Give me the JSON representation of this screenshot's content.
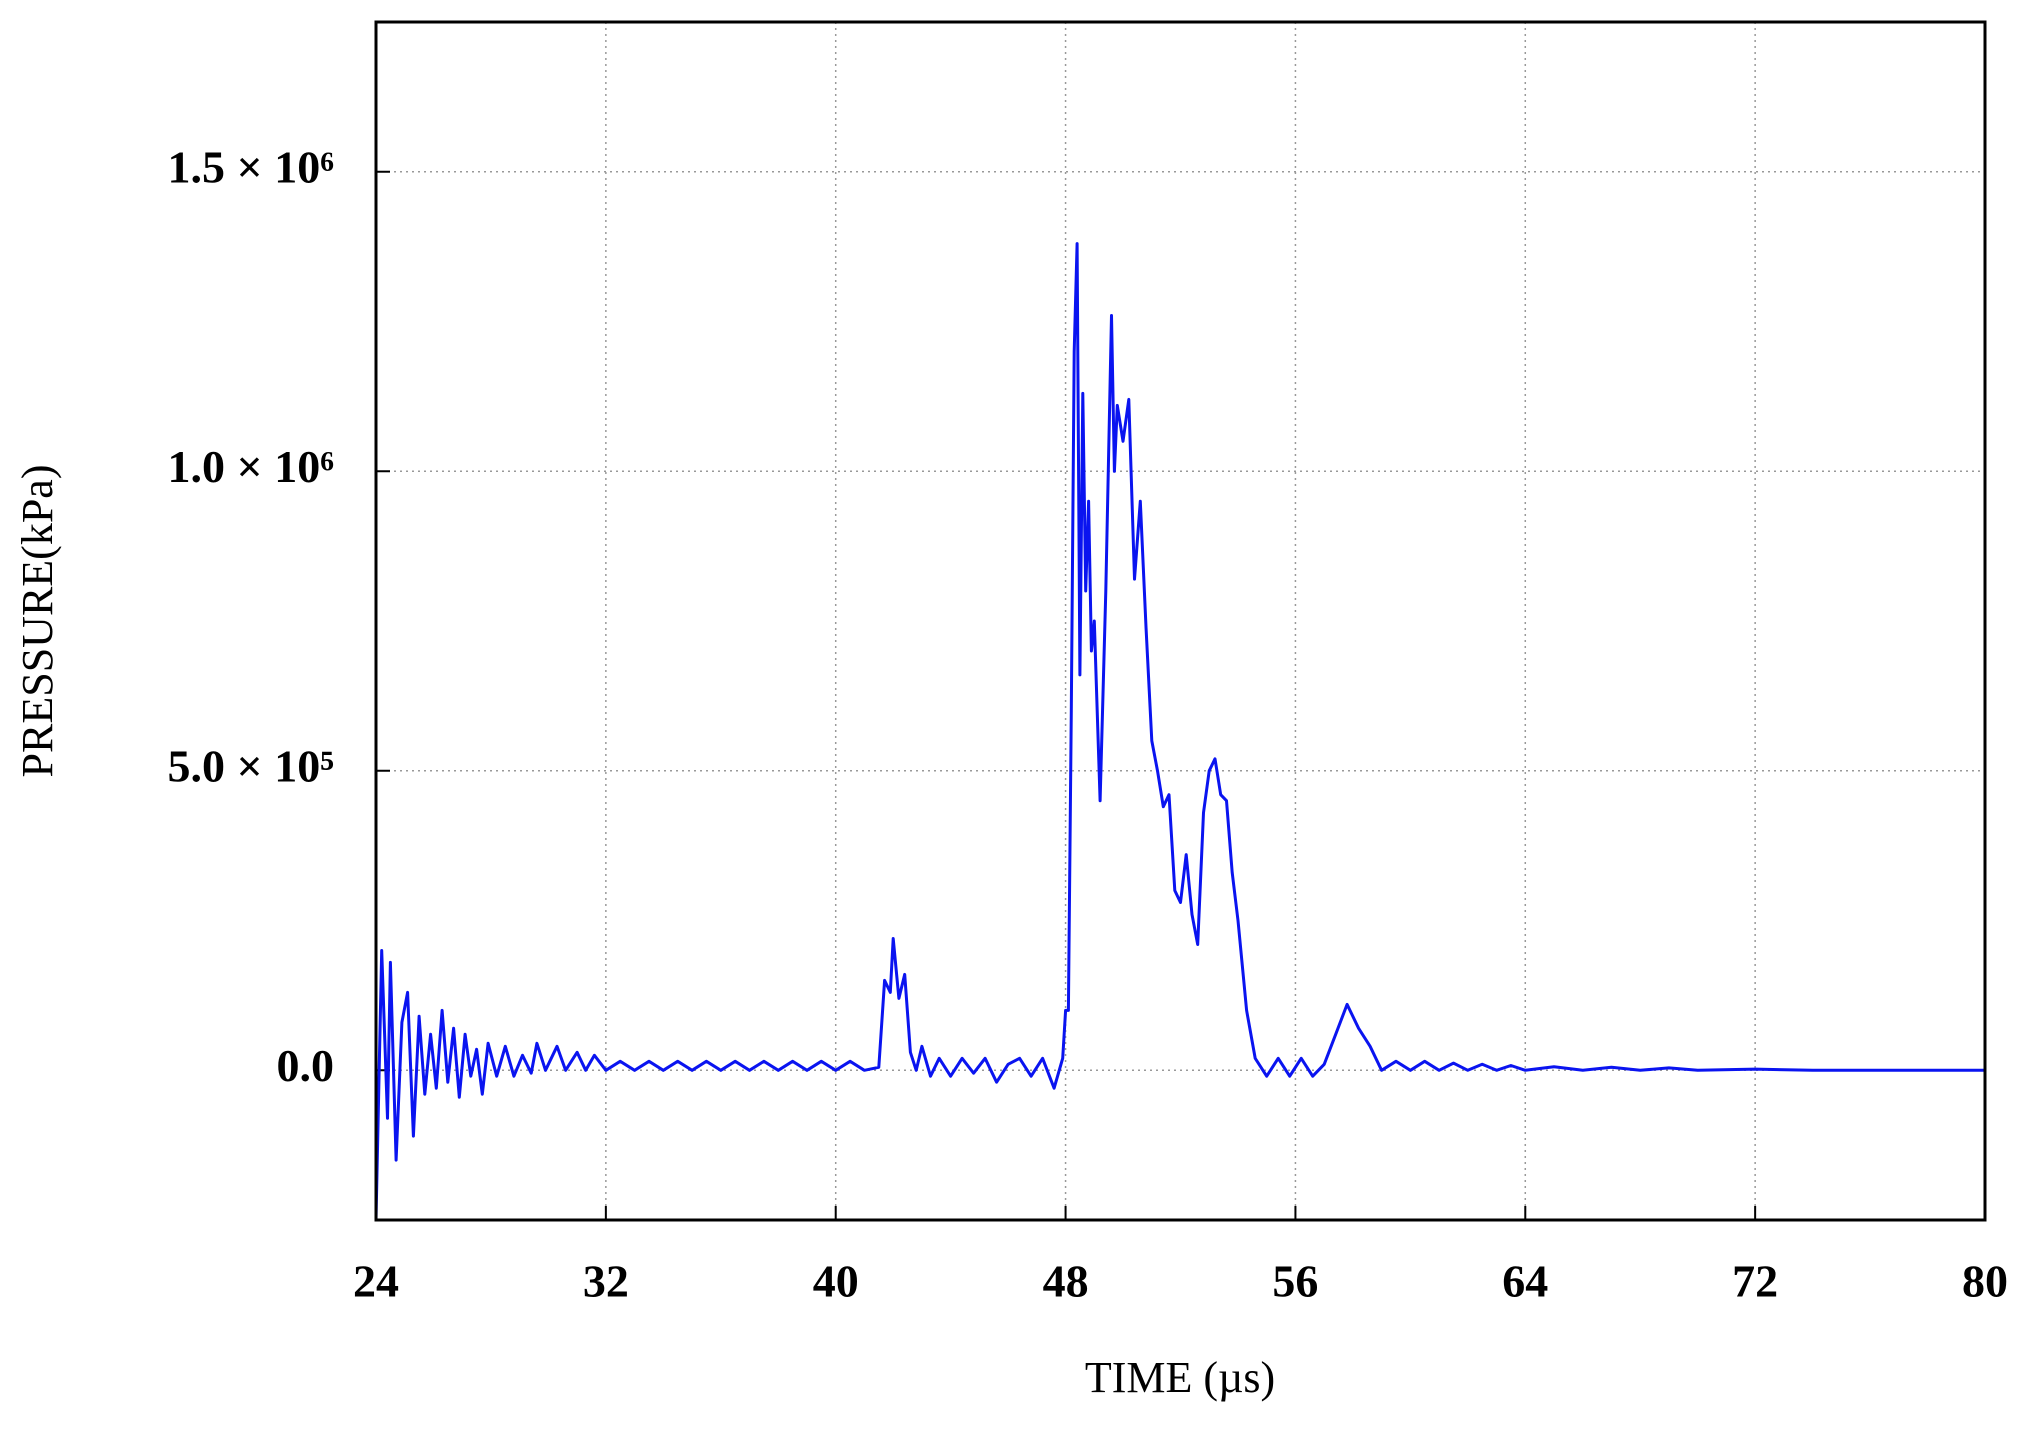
{
  "chart_data": {
    "type": "line",
    "xlabel": "TIME (µs)",
    "ylabel": "PRESSURE(kPa)",
    "x": [
      24.0,
      24.2,
      24.4,
      24.5,
      24.7,
      24.9,
      25.1,
      25.3,
      25.5,
      25.7,
      25.9,
      26.1,
      26.3,
      26.5,
      26.7,
      26.9,
      27.1,
      27.3,
      27.5,
      27.7,
      27.9,
      28.2,
      28.5,
      28.8,
      29.1,
      29.4,
      29.6,
      29.9,
      30.3,
      30.6,
      31.0,
      31.3,
      31.6,
      32.0,
      32.5,
      33.0,
      33.5,
      34.0,
      34.5,
      35.0,
      35.5,
      36.0,
      36.5,
      37.0,
      37.5,
      38.0,
      38.5,
      39.0,
      39.5,
      40.0,
      40.5,
      41.0,
      41.5,
      41.7,
      41.9,
      42.0,
      42.2,
      42.4,
      42.6,
      42.8,
      43.0,
      43.3,
      43.6,
      44.0,
      44.4,
      44.8,
      45.2,
      45.6,
      46.0,
      46.4,
      46.8,
      47.2,
      47.6,
      47.9,
      48.0,
      48.1,
      48.2,
      48.3,
      48.4,
      48.5,
      48.6,
      48.7,
      48.8,
      48.9,
      49.0,
      49.2,
      49.4,
      49.6,
      49.7,
      49.8,
      50.0,
      50.2,
      50.4,
      50.6,
      50.8,
      51.0,
      51.2,
      51.4,
      51.6,
      51.8,
      52.0,
      52.2,
      52.4,
      52.6,
      52.8,
      53.0,
      53.2,
      53.4,
      53.6,
      53.8,
      54.0,
      54.3,
      54.6,
      55.0,
      55.4,
      55.8,
      56.2,
      56.6,
      57.0,
      57.4,
      57.8,
      58.2,
      58.6,
      59.0,
      59.5,
      60.0,
      60.5,
      61.0,
      61.5,
      62.0,
      62.5,
      63.0,
      63.5,
      64.0,
      65.0,
      66.0,
      67.0,
      68.0,
      69.0,
      70.0,
      72.0,
      74.0,
      76.0,
      78.0,
      80.0
    ],
    "series": [
      {
        "color": "#0a14f0",
        "values": [
          -250000,
          200000,
          -80000,
          180000,
          -150000,
          80000,
          130000,
          -110000,
          90000,
          -40000,
          60000,
          -30000,
          100000,
          -20000,
          70000,
          -45000,
          60000,
          -10000,
          35000,
          -40000,
          45000,
          -10000,
          40000,
          -10000,
          25000,
          -5000,
          45000,
          0,
          40000,
          0,
          30000,
          0,
          25000,
          0,
          15000,
          0,
          15000,
          0,
          15000,
          0,
          15000,
          0,
          15000,
          0,
          15000,
          0,
          15000,
          0,
          15000,
          0,
          15000,
          0,
          5000,
          150000,
          130000,
          220000,
          120000,
          160000,
          30000,
          0,
          40000,
          -10000,
          20000,
          -10000,
          20000,
          -5000,
          20000,
          -20000,
          10000,
          20000,
          -10000,
          20000,
          -30000,
          20000,
          100000,
          100000,
          600000,
          1200000,
          1380000,
          660000,
          1130000,
          800000,
          950000,
          700000,
          750000,
          450000,
          800000,
          1260000,
          1000000,
          1110000,
          1050000,
          1120000,
          820000,
          950000,
          740000,
          550000,
          500000,
          440000,
          460000,
          300000,
          280000,
          360000,
          260000,
          210000,
          430000,
          500000,
          520000,
          460000,
          450000,
          330000,
          250000,
          100000,
          20000,
          -10000,
          20000,
          -10000,
          20000,
          -10000,
          10000,
          60000,
          110000,
          70000,
          40000,
          0,
          15000,
          0,
          15000,
          0,
          12000,
          0,
          10000,
          0,
          8000,
          0,
          6000,
          0,
          5000,
          0,
          4000,
          0,
          2000,
          0,
          0,
          0,
          0
        ]
      }
    ],
    "xlim": [
      24,
      80
    ],
    "xticks": [
      24,
      32,
      40,
      48,
      56,
      64,
      72,
      80
    ],
    "ylim": [
      -250000,
      1750000
    ],
    "yticks": [
      {
        "value": 0,
        "label": "0.0"
      },
      {
        "value": 500000,
        "label": "5.0 × 10⁵"
      },
      {
        "value": 1000000,
        "label": "1.0 × 10⁶"
      },
      {
        "value": 1500000,
        "label": "1.5 × 10⁶"
      }
    ],
    "grid": true
  }
}
